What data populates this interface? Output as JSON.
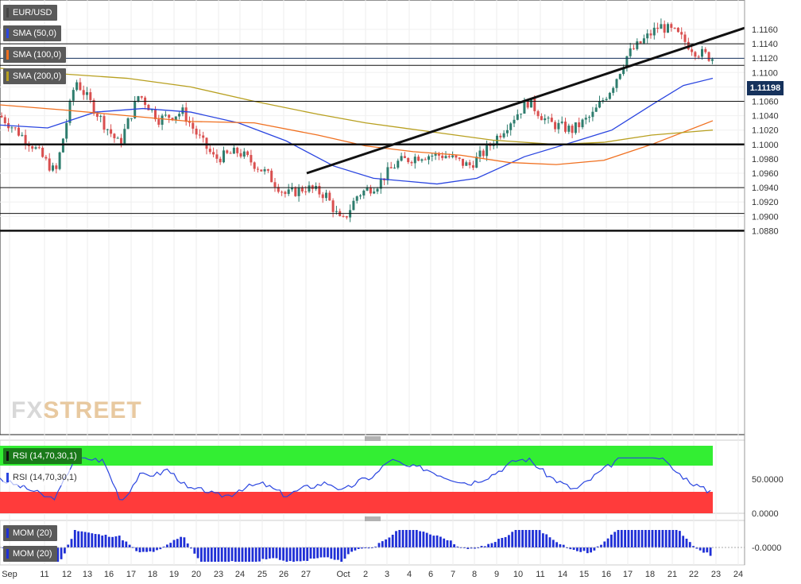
{
  "legend": {
    "symbol": "EUR/USD",
    "sma50": "SMA (50,0)",
    "sma100": "SMA (100,0)",
    "sma200": "SMA (200,0)",
    "rsi": "RSI (14,70,30,1)",
    "rsi_dup": "RSI (14,70,30,1)",
    "mom": "MOM (20)",
    "mom_dup": "MOM (20)"
  },
  "watermark": {
    "part1": "FX",
    "part2": "STREET"
  },
  "current_price": "1.11198",
  "colors": {
    "sma50": "#2a45e0",
    "sma100": "#f07020",
    "sma200": "#b8a020",
    "bull": "#2e7d6e",
    "bear": "#d94f4f",
    "rsi_overbought": "#33ee33",
    "rsi_oversold": "#ff3b3b",
    "mom_bar": "#1f2fd6"
  },
  "chart_data": {
    "type": "candlestick",
    "instrument": "EUR/USD",
    "y_ticks": [
      "1.1160",
      "1.1140",
      "1.1120",
      "1.1100",
      "1.1080",
      "1.1060",
      "1.1040",
      "1.1020",
      "1.1000",
      "1.0980",
      "1.0960",
      "1.0940",
      "1.0920",
      "1.0900",
      "1.0880"
    ],
    "ylim": [
      1.088,
      1.118
    ],
    "x_ticks": [
      "Sep",
      "11",
      "12",
      "13",
      "16",
      "17",
      "18",
      "19",
      "20",
      "23",
      "24",
      "25",
      "26",
      "27",
      "Oct",
      "2",
      "3",
      "4",
      "6",
      "7",
      "8",
      "9",
      "10",
      "11",
      "14",
      "15",
      "16",
      "17",
      "18",
      "21",
      "22",
      "23",
      "24"
    ],
    "horizontal_levels": [
      1.114,
      1.111,
      1.106,
      1.1,
      1.094,
      1.0904,
      1.088
    ],
    "trendline": {
      "from": [
        "27",
        1.096
      ],
      "to": [
        "24",
        1.1162
      ]
    },
    "series": [
      {
        "name": "SMA (50,0)",
        "points": [
          [
            0,
            1.1027
          ],
          [
            60,
            1.1023
          ],
          [
            120,
            1.1045
          ],
          [
            180,
            1.105
          ],
          [
            240,
            1.1045
          ],
          [
            300,
            1.103
          ],
          [
            360,
            1.1005
          ],
          [
            420,
            1.097
          ],
          [
            470,
            1.0953
          ],
          [
            550,
            1.0945
          ],
          [
            600,
            1.0953
          ],
          [
            660,
            1.0983
          ],
          [
            720,
            1.1003
          ],
          [
            770,
            1.102
          ],
          [
            820,
            1.1055
          ],
          [
            860,
            1.1082
          ],
          [
            897,
            1.1092
          ]
        ]
      },
      {
        "name": "SMA (100,0)",
        "points": [
          [
            0,
            1.1055
          ],
          [
            80,
            1.1048
          ],
          [
            160,
            1.104
          ],
          [
            240,
            1.1032
          ],
          [
            320,
            1.103
          ],
          [
            400,
            1.1013
          ],
          [
            460,
            1.0998
          ],
          [
            520,
            1.099
          ],
          [
            580,
            1.0985
          ],
          [
            640,
            1.0975
          ],
          [
            700,
            1.0972
          ],
          [
            760,
            1.0978
          ],
          [
            820,
            1.1
          ],
          [
            897,
            1.1033
          ]
        ]
      },
      {
        "name": "SMA (200,0)",
        "points": [
          [
            0,
            1.1106
          ],
          [
            80,
            1.1098
          ],
          [
            160,
            1.1092
          ],
          [
            240,
            1.108
          ],
          [
            320,
            1.106
          ],
          [
            400,
            1.1042
          ],
          [
            460,
            1.103
          ],
          [
            540,
            1.1018
          ],
          [
            620,
            1.1006
          ],
          [
            700,
            1.1
          ],
          [
            760,
            1.1003
          ],
          [
            820,
            1.1013
          ],
          [
            897,
            1.102
          ]
        ]
      }
    ],
    "rsi": {
      "levels": [
        "50.0000",
        "0.0000"
      ],
      "overbought": 70,
      "oversold": 30
    },
    "mom": {
      "levels": [
        "-0.0000"
      ]
    }
  }
}
